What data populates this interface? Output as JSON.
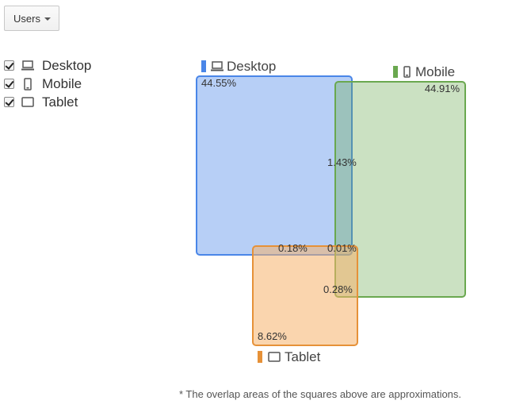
{
  "dropdown": {
    "label": "Users"
  },
  "legend": [
    {
      "label": "Desktop",
      "icon": "desktop-icon",
      "checked": true
    },
    {
      "label": "Mobile",
      "icon": "mobile-icon",
      "checked": true
    },
    {
      "label": "Tablet",
      "icon": "tablet-icon",
      "checked": true
    }
  ],
  "chart_data": {
    "type": "venn",
    "sets": [
      {
        "name": "Desktop",
        "icon": "desktop-icon",
        "color": "#4a86e8",
        "value": "44.55%"
      },
      {
        "name": "Mobile",
        "icon": "mobile-icon",
        "color": "#6aa84f",
        "value": "44.91%"
      },
      {
        "name": "Tablet",
        "icon": "tablet-icon",
        "color": "#e69138",
        "value": "8.62%"
      }
    ],
    "overlaps": [
      {
        "sets": [
          "Desktop",
          "Mobile"
        ],
        "value": "1.43%"
      },
      {
        "sets": [
          "Desktop",
          "Tablet"
        ],
        "value": "0.18%"
      },
      {
        "sets": [
          "Desktop",
          "Mobile",
          "Tablet"
        ],
        "value": "0.01%"
      },
      {
        "sets": [
          "Mobile",
          "Tablet"
        ],
        "value": "0.28%"
      }
    ]
  },
  "footnote": "* The overlap areas of the squares above are approximations."
}
